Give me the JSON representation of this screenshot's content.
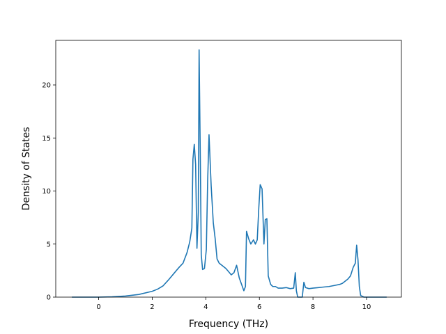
{
  "chart_data": {
    "type": "line",
    "title": "",
    "xlabel": "Frequency (THz)",
    "ylabel": "Density of States",
    "xlim": [
      -1.6,
      11.3
    ],
    "ylim": [
      0,
      24.2
    ],
    "x_ticks": [
      0,
      2,
      4,
      6,
      8,
      10
    ],
    "x_tick_labels": [
      "0",
      "2",
      "4",
      "6",
      "8",
      "10"
    ],
    "y_ticks": [
      0,
      5,
      10,
      15,
      20
    ],
    "y_tick_labels": [
      "0",
      "5",
      "10",
      "15",
      "20"
    ],
    "grid": false,
    "legend": "none",
    "series": [
      {
        "color": "#1f77b4",
        "points": [
          [
            -1.0,
            0.0
          ],
          [
            -0.5,
            0.0
          ],
          [
            0.0,
            0.0
          ],
          [
            0.5,
            0.03
          ],
          [
            1.0,
            0.1
          ],
          [
            1.5,
            0.25
          ],
          [
            2.0,
            0.55
          ],
          [
            2.2,
            0.75
          ],
          [
            2.4,
            1.05
          ],
          [
            2.6,
            1.6
          ],
          [
            2.8,
            2.2
          ],
          [
            3.0,
            2.8
          ],
          [
            3.15,
            3.2
          ],
          [
            3.3,
            4.2
          ],
          [
            3.4,
            5.2
          ],
          [
            3.48,
            6.5
          ],
          [
            3.52,
            13.0
          ],
          [
            3.57,
            14.4
          ],
          [
            3.62,
            12.5
          ],
          [
            3.67,
            4.6
          ],
          [
            3.72,
            8.0
          ],
          [
            3.75,
            23.3
          ],
          [
            3.8,
            12.0
          ],
          [
            3.83,
            4.0
          ],
          [
            3.88,
            2.6
          ],
          [
            3.95,
            2.7
          ],
          [
            4.02,
            4.5
          ],
          [
            4.07,
            11.0
          ],
          [
            4.12,
            15.3
          ],
          [
            4.2,
            10.5
          ],
          [
            4.28,
            7.0
          ],
          [
            4.35,
            5.5
          ],
          [
            4.42,
            3.6
          ],
          [
            4.5,
            3.2
          ],
          [
            4.6,
            3.0
          ],
          [
            4.75,
            2.7
          ],
          [
            4.85,
            2.4
          ],
          [
            4.95,
            2.1
          ],
          [
            5.05,
            2.3
          ],
          [
            5.15,
            3.0
          ],
          [
            5.25,
            1.8
          ],
          [
            5.35,
            1.1
          ],
          [
            5.42,
            0.6
          ],
          [
            5.48,
            1.0
          ],
          [
            5.52,
            6.2
          ],
          [
            5.6,
            5.5
          ],
          [
            5.68,
            5.0
          ],
          [
            5.78,
            5.4
          ],
          [
            5.85,
            5.0
          ],
          [
            5.92,
            5.4
          ],
          [
            5.98,
            8.5
          ],
          [
            6.03,
            10.6
          ],
          [
            6.1,
            10.2
          ],
          [
            6.17,
            5.0
          ],
          [
            6.22,
            7.3
          ],
          [
            6.28,
            7.4
          ],
          [
            6.33,
            2.0
          ],
          [
            6.42,
            1.2
          ],
          [
            6.5,
            1.0
          ],
          [
            6.6,
            1.0
          ],
          [
            6.7,
            0.85
          ],
          [
            6.85,
            0.85
          ],
          [
            7.0,
            0.9
          ],
          [
            7.15,
            0.8
          ],
          [
            7.28,
            0.85
          ],
          [
            7.34,
            2.3
          ],
          [
            7.38,
            0.6
          ],
          [
            7.43,
            0.0
          ],
          [
            7.6,
            0.0
          ],
          [
            7.66,
            1.4
          ],
          [
            7.72,
            0.9
          ],
          [
            7.85,
            0.8
          ],
          [
            8.0,
            0.85
          ],
          [
            8.2,
            0.9
          ],
          [
            8.4,
            0.95
          ],
          [
            8.6,
            1.0
          ],
          [
            8.8,
            1.1
          ],
          [
            9.0,
            1.2
          ],
          [
            9.1,
            1.3
          ],
          [
            9.2,
            1.5
          ],
          [
            9.3,
            1.7
          ],
          [
            9.4,
            2.0
          ],
          [
            9.5,
            2.8
          ],
          [
            9.58,
            3.2
          ],
          [
            9.63,
            4.9
          ],
          [
            9.68,
            3.5
          ],
          [
            9.73,
            1.0
          ],
          [
            9.78,
            0.15
          ],
          [
            9.9,
            0.0
          ],
          [
            10.3,
            0.0
          ],
          [
            10.75,
            0.0
          ]
        ]
      }
    ]
  }
}
